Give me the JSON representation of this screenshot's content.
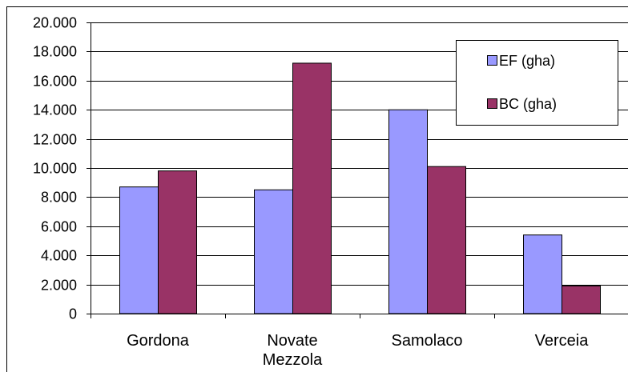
{
  "chart_data": {
    "type": "bar",
    "categories": [
      "Gordona",
      "Novate Mezzola",
      "Samolaco",
      "Verceia"
    ],
    "series": [
      {
        "name": "EF (gha)",
        "values": [
          8700,
          8500,
          14000,
          5400
        ],
        "color": "#9999ff"
      },
      {
        "name": "BC (gha)",
        "values": [
          9800,
          17200,
          10100,
          1900
        ],
        "color": "#993366"
      }
    ],
    "ylim": [
      0,
      20000
    ],
    "yticks": [
      {
        "value": 0,
        "label": "0"
      },
      {
        "value": 2000,
        "label": "2.000"
      },
      {
        "value": 4000,
        "label": "4.000"
      },
      {
        "value": 6000,
        "label": "6.000"
      },
      {
        "value": 8000,
        "label": "8.000"
      },
      {
        "value": 10000,
        "label": "10.000"
      },
      {
        "value": 12000,
        "label": "12.000"
      },
      {
        "value": 14000,
        "label": "14.000"
      },
      {
        "value": 16000,
        "label": "16.000"
      },
      {
        "value": 18000,
        "label": "18.000"
      },
      {
        "value": 20000,
        "label": "20.000"
      }
    ],
    "category_labels": [
      [
        "Gordona"
      ],
      [
        "Novate",
        "Mezzola"
      ],
      [
        "Samolaco"
      ],
      [
        "Verceia"
      ]
    ],
    "grid": true,
    "legend_position": "top-right"
  }
}
